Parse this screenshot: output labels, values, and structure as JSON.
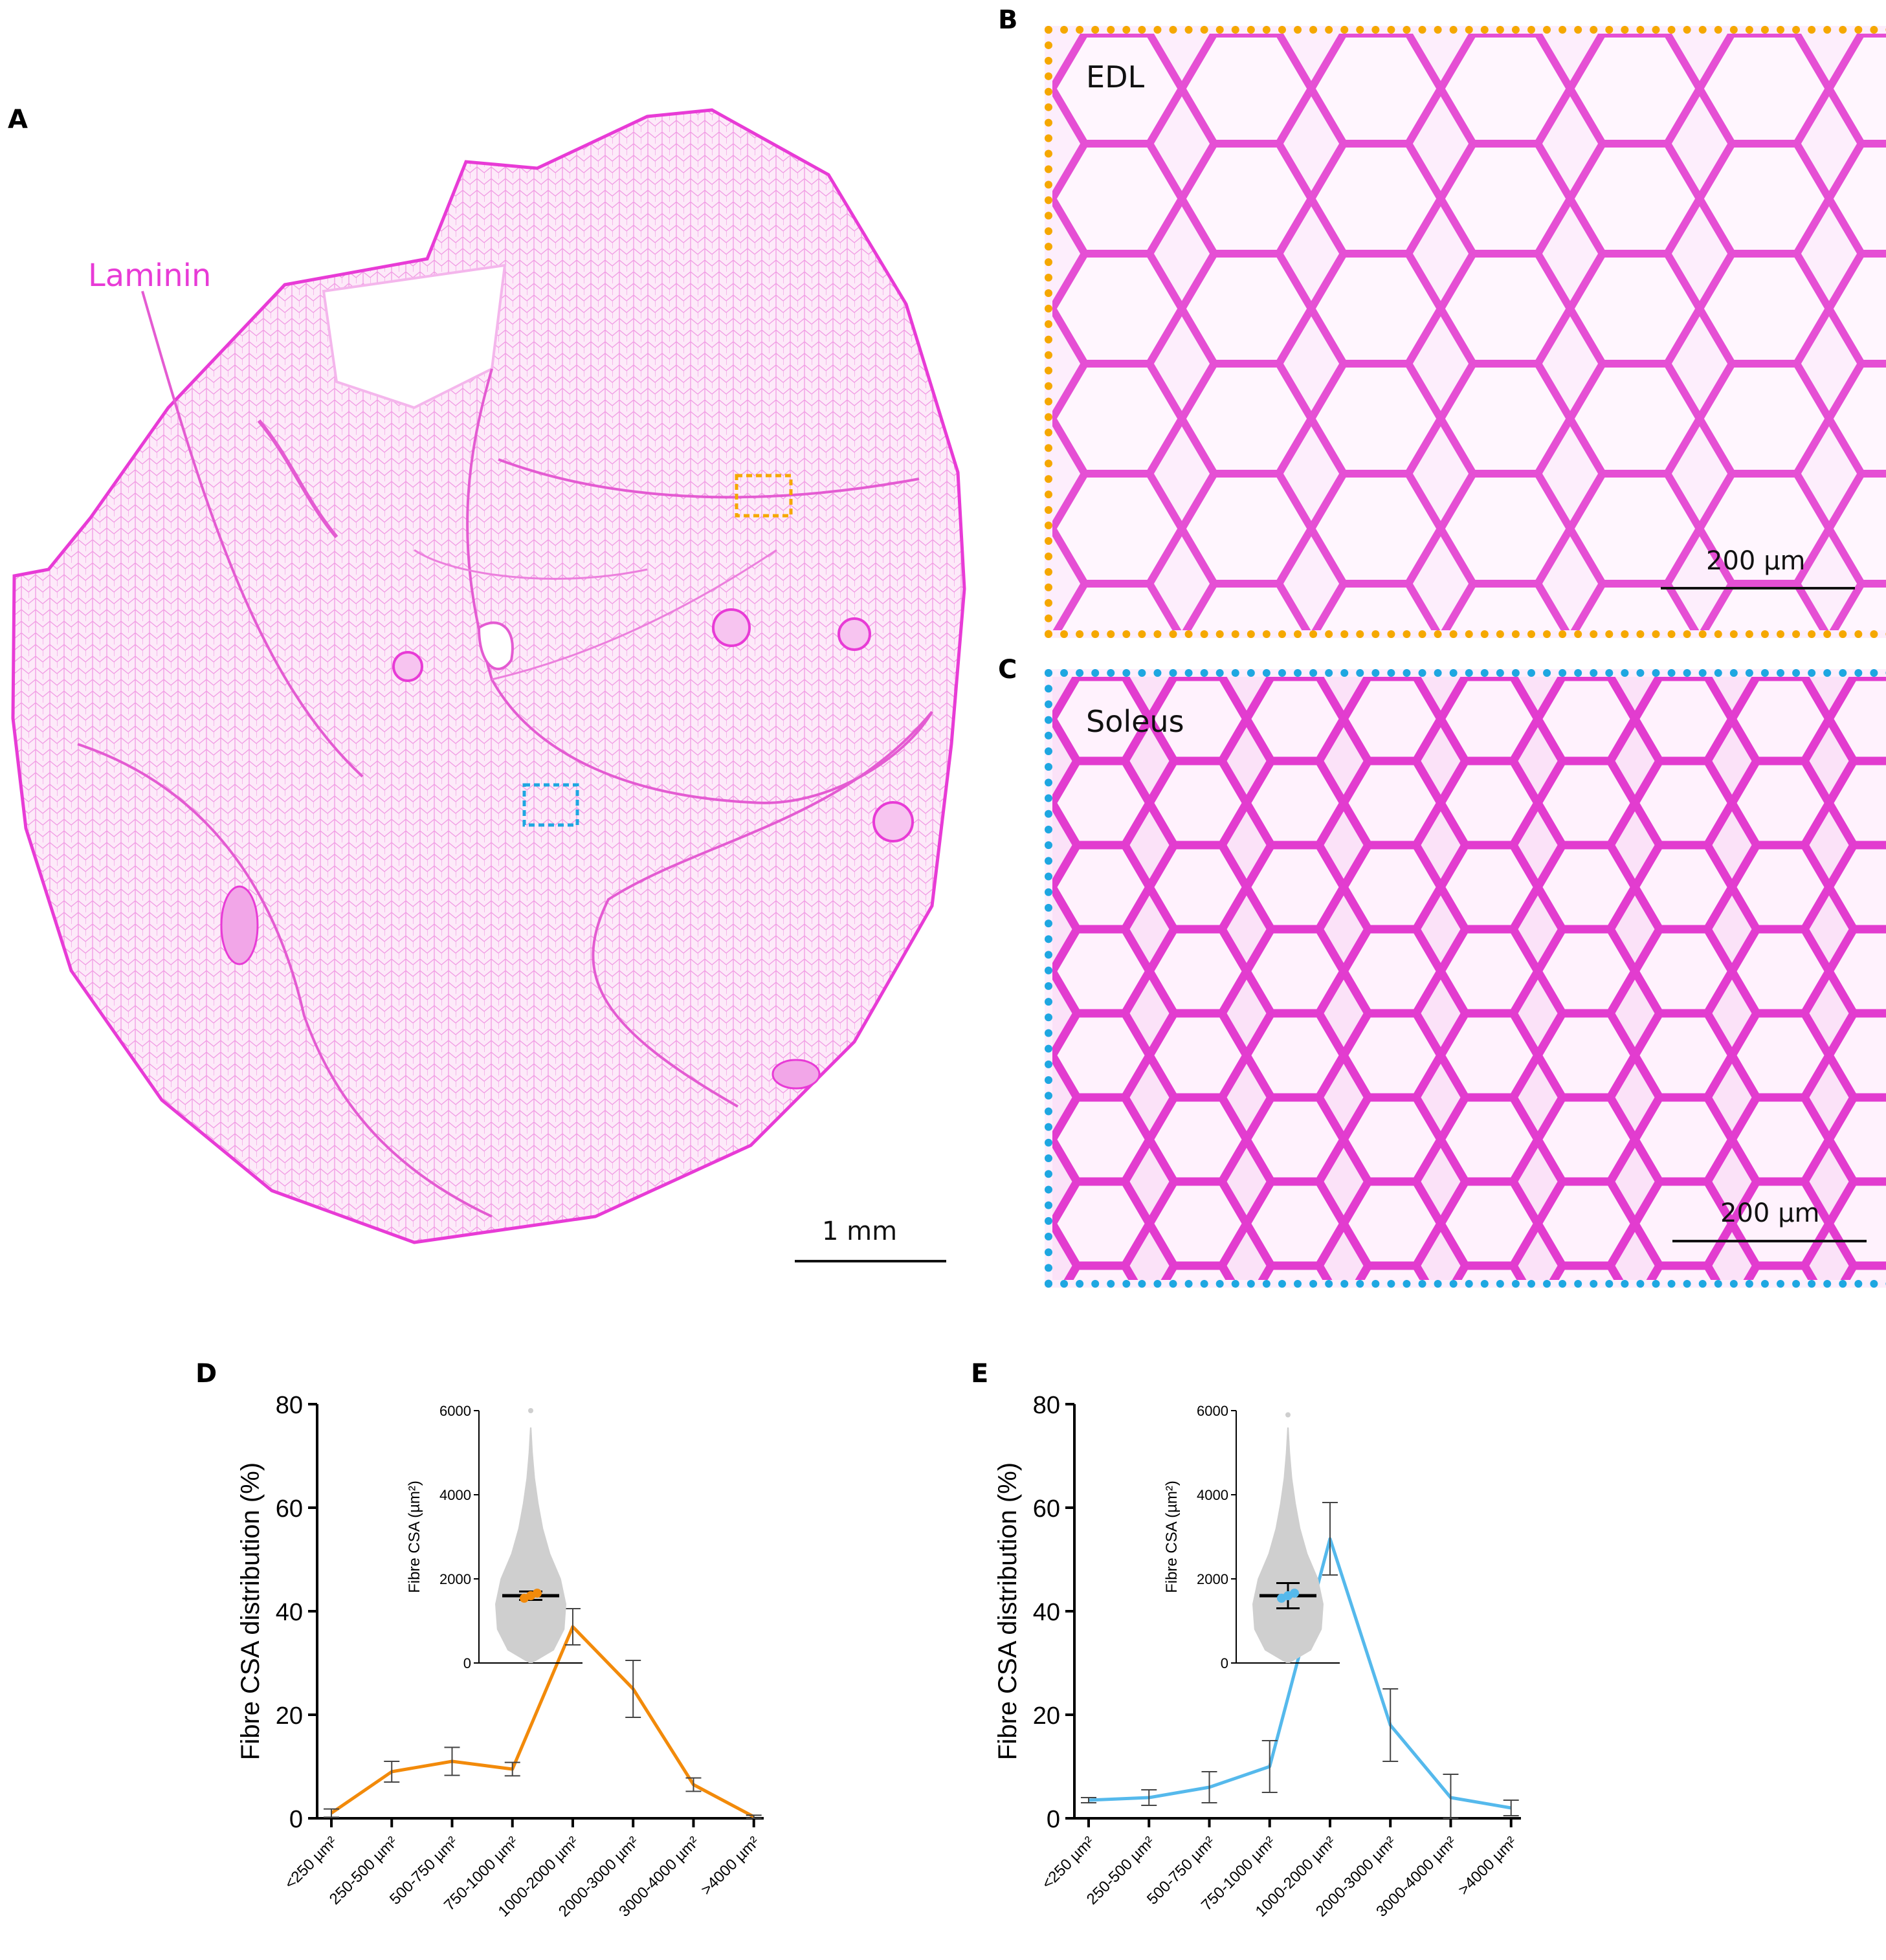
{
  "panels": {
    "a": {
      "letter": "A",
      "stain_label": "Laminin",
      "scale_label": "1 mm"
    },
    "b": {
      "letter": "B",
      "label": "EDL",
      "scale_label": "200 µm",
      "border_color": "#f5a800"
    },
    "c": {
      "letter": "C",
      "label": "Soleus",
      "scale_label": "200 µm",
      "border_color": "#1ea7e1"
    },
    "d": {
      "letter": "D"
    },
    "e": {
      "letter": "E"
    }
  },
  "colors": {
    "stain": "#e83bd6",
    "stain_light": "#f7c4f0",
    "line_d": "#f28a0a",
    "line_e": "#55b9ec",
    "dots": "#cfcfcf"
  },
  "chart_data": [
    {
      "type": "line",
      "panel": "D",
      "ylabel": "Fibre CSA distribution (%)",
      "xlabel": "",
      "categories": [
        "<250 µm²",
        "250-500 µm²",
        "500-750 µm²",
        "750-1000 µm²",
        "1000-2000 µm²",
        "2000-3000 µm²",
        "3000-4000 µm²",
        ">4000 µm²"
      ],
      "ylim": [
        0,
        80
      ],
      "yticks": [
        0,
        20,
        40,
        60,
        80
      ],
      "series": [
        {
          "values": [
            1,
            9,
            11,
            9.5,
            37,
            25,
            6.5,
            0.3
          ],
          "errors": [
            0.8,
            2,
            2.7,
            1.3,
            3.5,
            5.5,
            1.3,
            0.3
          ]
        }
      ],
      "inset": {
        "type": "scatter",
        "ylabel": "Fibre CSA (µm²)",
        "ylim": [
          0,
          6000
        ],
        "yticks": [
          0,
          2000,
          4000,
          6000
        ],
        "mean": 1600,
        "sd": 100,
        "max_point": 6000
      }
    },
    {
      "type": "line",
      "panel": "E",
      "ylabel": "Fibre CSA distribution (%)",
      "xlabel": "",
      "categories": [
        "<250 µm²",
        "250-500 µm²",
        "500-750 µm²",
        "750-1000 µm²",
        "1000-2000 µm²",
        "2000-3000 µm²",
        "3000-4000 µm²",
        ">4000 µm²"
      ],
      "ylim": [
        0,
        80
      ],
      "yticks": [
        0,
        20,
        40,
        60,
        80
      ],
      "series": [
        {
          "values": [
            3.5,
            4,
            6,
            10,
            54,
            18,
            4,
            2
          ],
          "errors": [
            0.5,
            1.5,
            3,
            5,
            7,
            7,
            4.5,
            1.5
          ]
        }
      ],
      "inset": {
        "type": "scatter",
        "ylabel": "Fibre CSA (µm²)",
        "ylim": [
          0,
          6000
        ],
        "yticks": [
          0,
          2000,
          4000,
          6000
        ],
        "mean": 1600,
        "sd": 300,
        "max_point": 5900
      }
    }
  ]
}
